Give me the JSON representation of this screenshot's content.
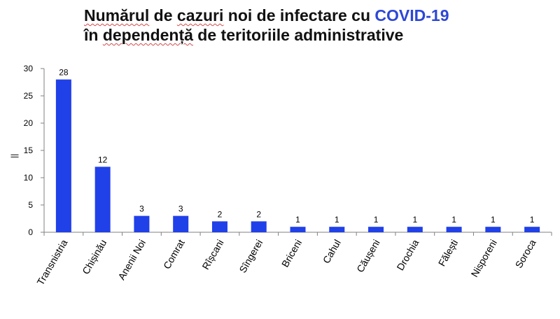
{
  "title": {
    "line1_part1": "Numărul",
    "line1_part2": " de ",
    "line1_part3": "cazuri",
    "line1_part4": " noi de infectare cu ",
    "line1_accent": "COVID-19",
    "line2_part1": "în ",
    "line2_part2": "dependență",
    "line2_part3": " de teritoriile administrative"
  },
  "ylabel_glyph": "||",
  "colors": {
    "bar": "#2040e8",
    "accent": "#2d47d6",
    "axis": "#808080"
  },
  "chart_data": {
    "type": "bar",
    "title": "Numărul de cazuri noi de infectare cu COVID-19 în dependență de teritoriile administrative",
    "xlabel": "",
    "ylabel": "",
    "ylim": [
      0,
      30
    ],
    "yticks": [
      0,
      5,
      10,
      15,
      20,
      25,
      30
    ],
    "grid": false,
    "legend": "none",
    "categories": [
      "Transnistria",
      "Chișinău",
      "Anenii Noi",
      "Comrat",
      "Rîșcani",
      "Sîngerei",
      "Briceni",
      "Cahul",
      "Căușeni",
      "Drochia",
      "Fălești",
      "Nisporeni",
      "Soroca"
    ],
    "values": [
      28,
      12,
      3,
      3,
      2,
      2,
      1,
      1,
      1,
      1,
      1,
      1,
      1
    ]
  }
}
